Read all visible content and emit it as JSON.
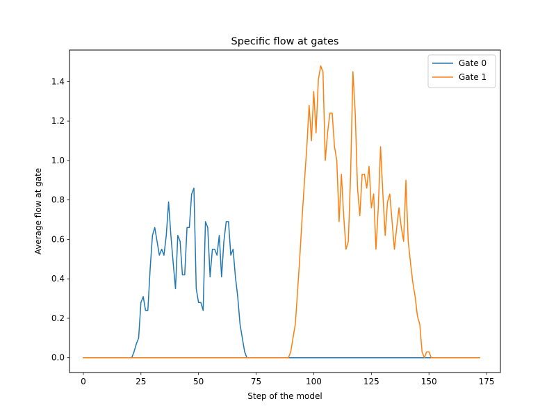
{
  "chart_data": {
    "type": "line",
    "title": "Specific flow at gates",
    "xlabel": "Step of the model",
    "ylabel": "Average flow at gate",
    "xlim": [
      -6.0,
      181.0
    ],
    "ylim": [
      -0.075,
      1.56
    ],
    "x_ticks": [
      0,
      25,
      50,
      75,
      100,
      125,
      150,
      175
    ],
    "y_ticks": [
      0.0,
      0.2,
      0.4,
      0.6,
      0.8,
      1.0,
      1.2,
      1.4
    ],
    "y_tick_labels": [
      "0.0",
      "0.2",
      "0.4",
      "0.6",
      "0.8",
      "1.0",
      "1.2",
      "1.4"
    ],
    "legend_position": "top-right",
    "grid": false,
    "series": [
      {
        "name": "Gate 0",
        "color": "#1f77b4",
        "x": [
          0,
          21,
          22,
          23,
          24,
          25,
          26,
          27,
          28,
          29,
          30,
          31,
          32,
          33,
          34,
          35,
          36,
          37,
          38,
          39,
          40,
          41,
          42,
          43,
          44,
          45,
          46,
          47,
          48,
          49,
          50,
          51,
          52,
          53,
          54,
          55,
          56,
          57,
          58,
          59,
          60,
          61,
          62,
          63,
          64,
          65,
          66,
          67,
          68,
          69,
          70,
          71,
          72,
          80,
          90,
          100,
          110,
          120,
          130,
          140,
          150,
          160,
          172
        ],
        "y": [
          0,
          0,
          0.03,
          0.07,
          0.1,
          0.28,
          0.31,
          0.24,
          0.24,
          0.45,
          0.62,
          0.66,
          0.59,
          0.52,
          0.55,
          0.52,
          0.62,
          0.79,
          0.62,
          0.48,
          0.35,
          0.62,
          0.59,
          0.42,
          0.42,
          0.66,
          0.66,
          0.83,
          0.86,
          0.35,
          0.28,
          0.28,
          0.24,
          0.69,
          0.66,
          0.41,
          0.55,
          0.55,
          0.52,
          0.62,
          0.41,
          0.59,
          0.69,
          0.69,
          0.52,
          0.55,
          0.41,
          0.31,
          0.17,
          0.1,
          0.03,
          0,
          0,
          0,
          0,
          0,
          0,
          0,
          0,
          0,
          0,
          0,
          0
        ]
      },
      {
        "name": "Gate 1",
        "color": "#ff7f0e",
        "x": [
          0,
          20,
          40,
          60,
          80,
          89,
          90,
          91,
          92,
          93,
          94,
          95,
          96,
          97,
          98,
          99,
          100,
          101,
          102,
          103,
          104,
          105,
          106,
          107,
          108,
          109,
          110,
          111,
          112,
          113,
          114,
          115,
          116,
          117,
          118,
          119,
          120,
          121,
          122,
          123,
          124,
          125,
          126,
          127,
          128,
          129,
          130,
          131,
          132,
          133,
          134,
          135,
          136,
          137,
          138,
          139,
          140,
          141,
          142,
          143,
          144,
          145,
          146,
          147,
          148,
          149,
          150,
          151,
          152,
          160,
          172
        ],
        "y": [
          0,
          0,
          0,
          0,
          0,
          0,
          0.03,
          0.1,
          0.17,
          0.34,
          0.52,
          0.72,
          0.9,
          1.07,
          1.28,
          1.1,
          1.35,
          1.14,
          1.41,
          1.48,
          1.45,
          1.0,
          1.14,
          1.24,
          1.24,
          1.07,
          1.0,
          0.69,
          0.93,
          0.72,
          0.55,
          0.59,
          0.93,
          1.45,
          1.24,
          0.86,
          0.72,
          0.93,
          0.93,
          0.86,
          0.97,
          0.76,
          0.83,
          0.55,
          0.76,
          1.07,
          0.83,
          0.62,
          0.79,
          0.83,
          0.69,
          0.55,
          0.66,
          0.76,
          0.66,
          0.59,
          0.9,
          0.59,
          0.48,
          0.38,
          0.31,
          0.21,
          0.17,
          0.03,
          0.0,
          0.03,
          0.03,
          0,
          0,
          0,
          0
        ]
      }
    ]
  }
}
